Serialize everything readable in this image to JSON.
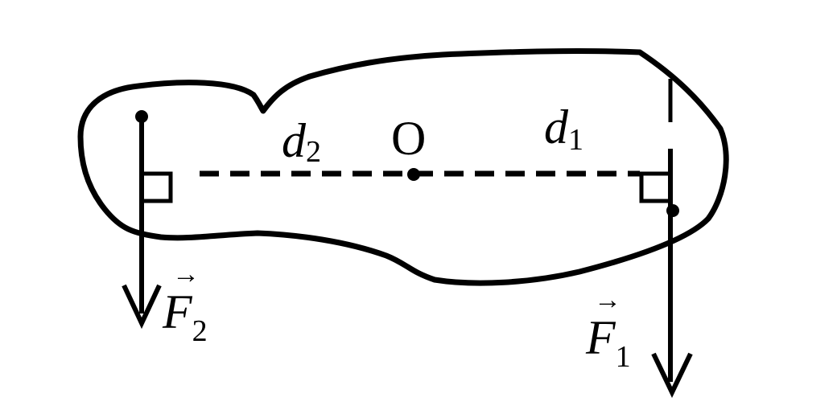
{
  "diagram": {
    "pivot": {
      "label": "O"
    },
    "distances": {
      "d1": {
        "base": "d",
        "sub": "1"
      },
      "d2": {
        "base": "d",
        "sub": "2"
      }
    },
    "forces": {
      "F1": {
        "base": "F",
        "sub": "1",
        "vector_mark": "→"
      },
      "F2": {
        "base": "F",
        "sub": "2",
        "vector_mark": "→"
      }
    },
    "colors": {
      "stroke": "#000000",
      "background": "#ffffff"
    }
  }
}
